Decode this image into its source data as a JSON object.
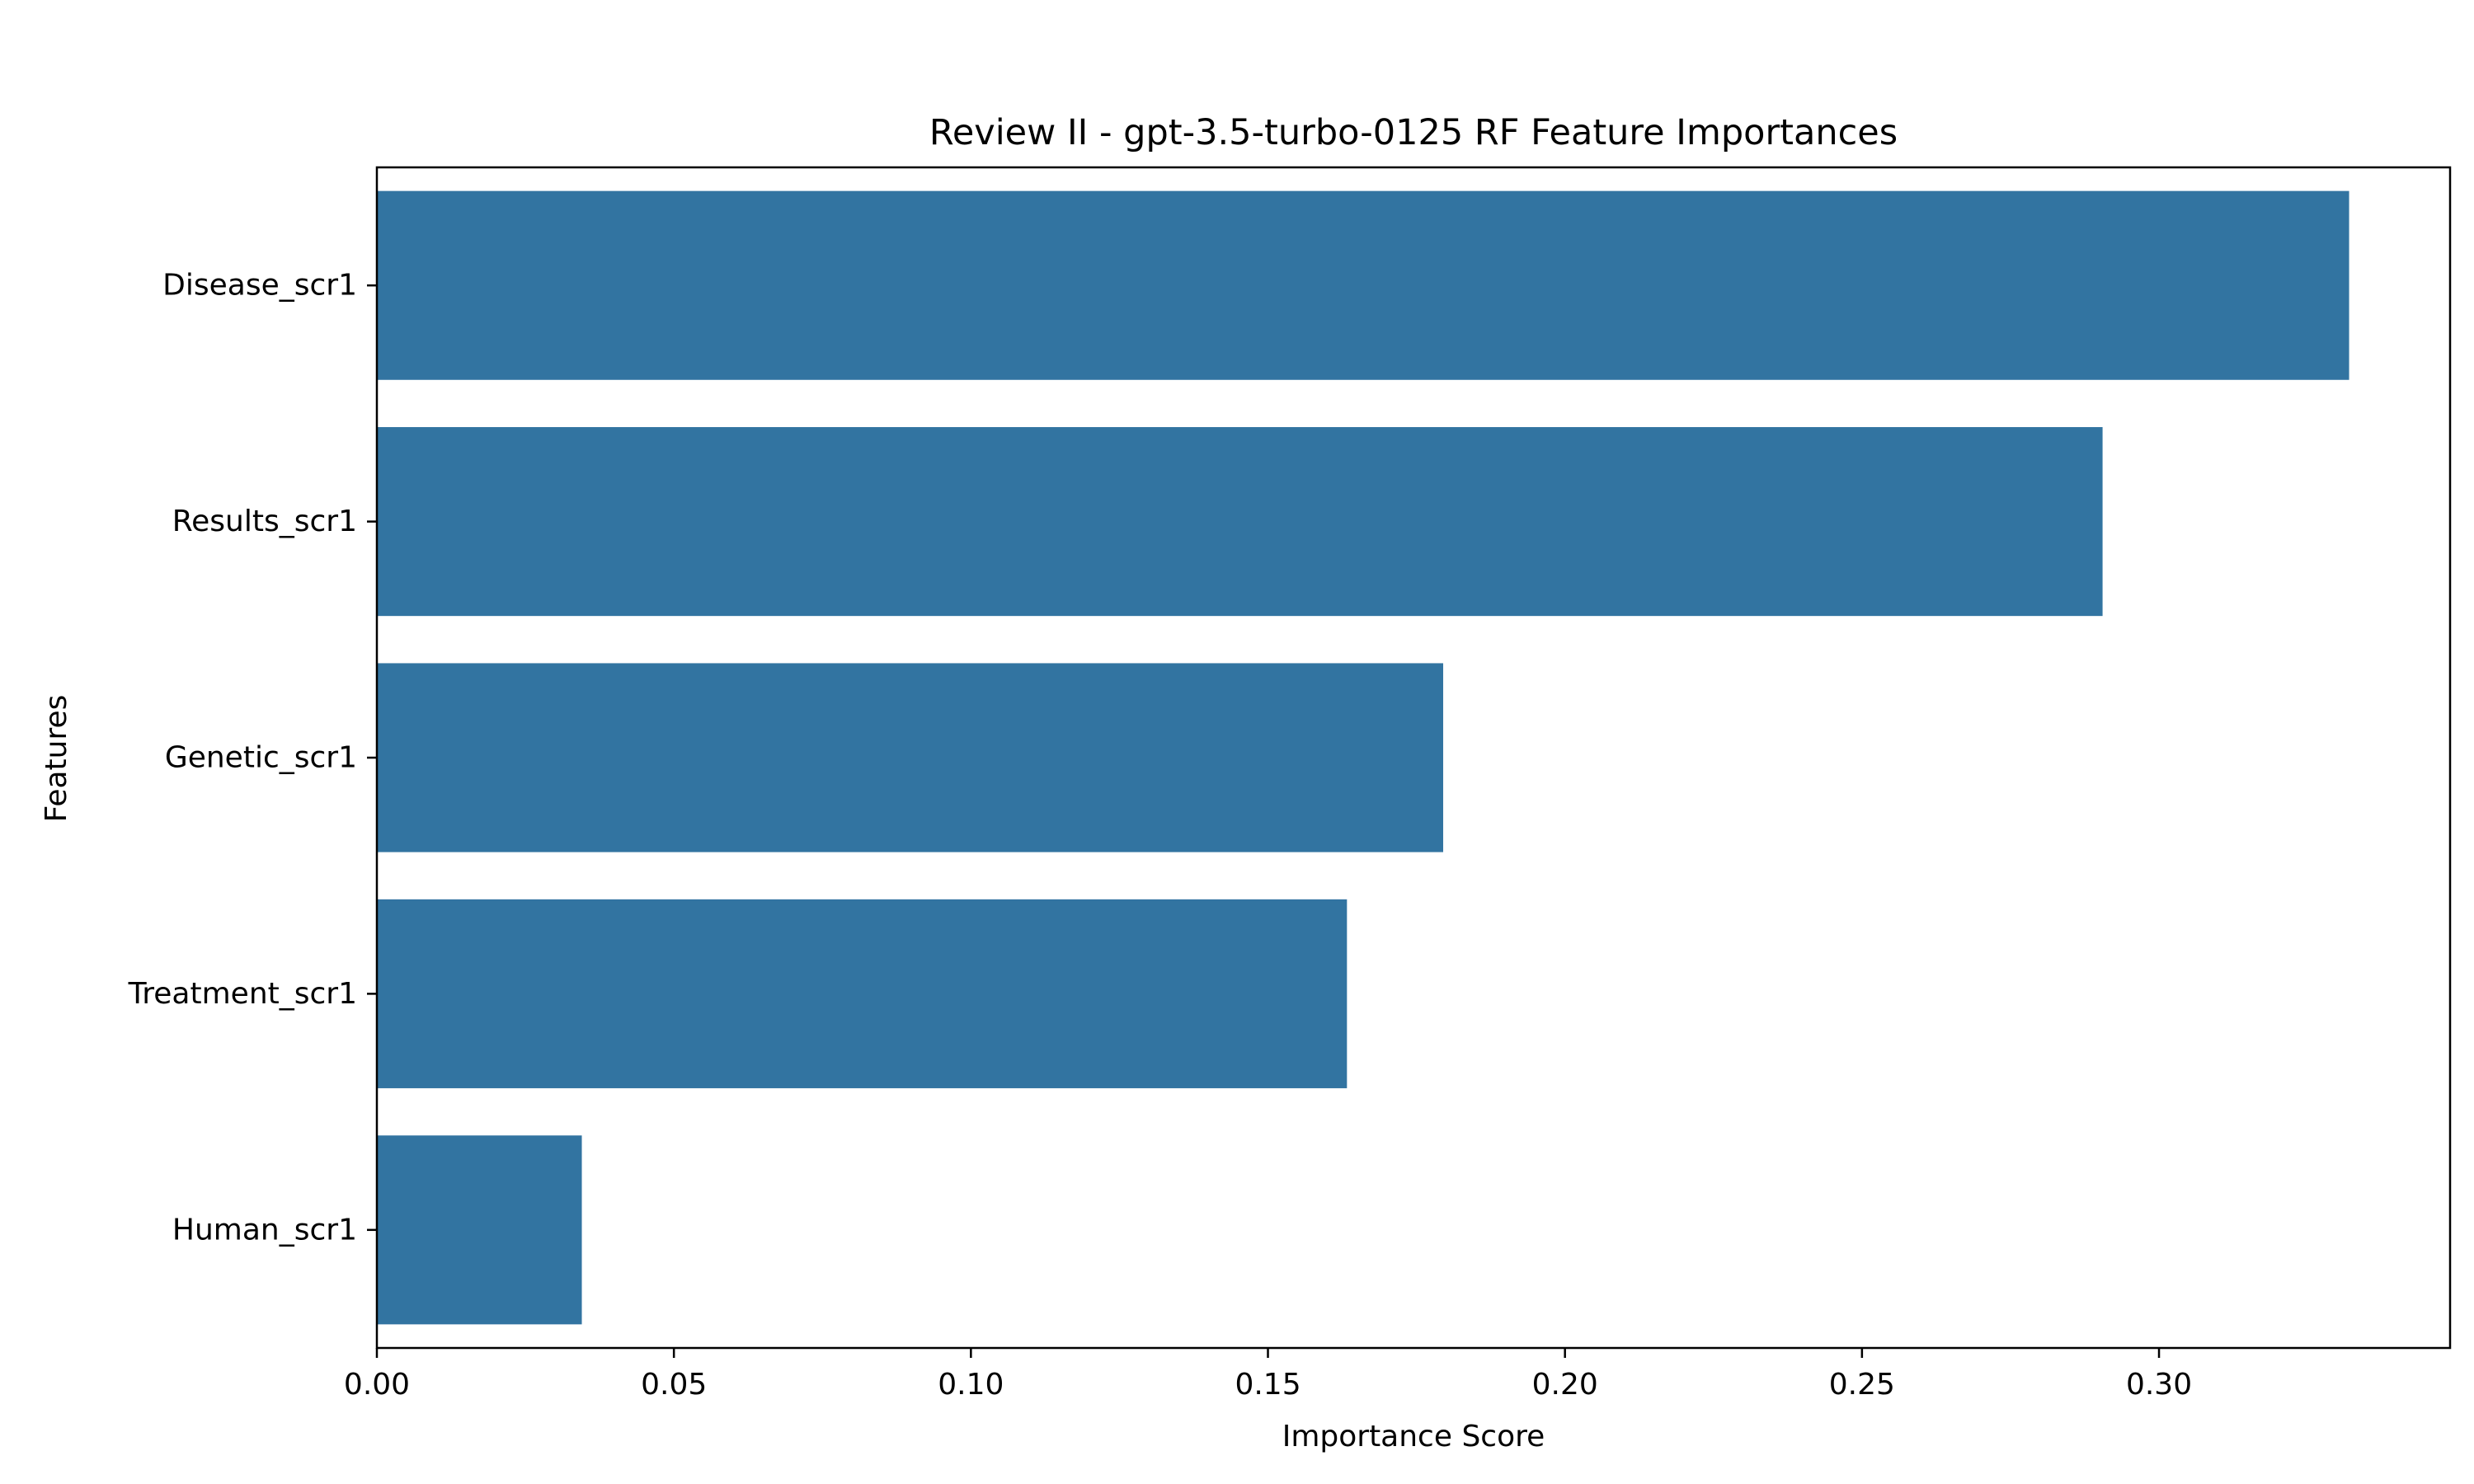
{
  "chart_data": {
    "type": "bar",
    "orientation": "horizontal",
    "title": "Review II - gpt-3.5-turbo-0125 RF Feature Importances",
    "xlabel": "Importance Score",
    "ylabel": "Features",
    "categories": [
      "Disease_scr1",
      "Results_scr1",
      "Genetic_scr1",
      "Treatment_scr1",
      "Human_scr1"
    ],
    "values": [
      0.332,
      0.2905,
      0.1795,
      0.1633,
      0.0345
    ],
    "xlim": [
      0,
      0.349
    ],
    "xticks": [
      "0.00",
      "0.05",
      "0.10",
      "0.15",
      "0.20",
      "0.25",
      "0.30"
    ],
    "bar_color": "#3274a1",
    "grid": false,
    "legend": "none"
  }
}
